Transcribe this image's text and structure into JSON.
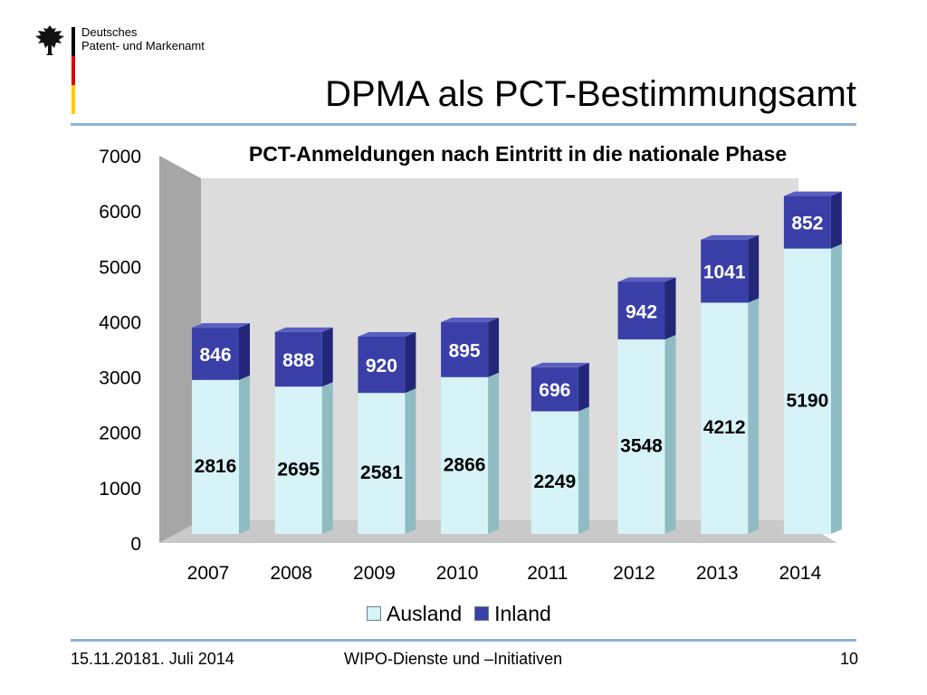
{
  "header": {
    "org_line1": "Deutsches",
    "org_line2": "Patent- und Markenamt",
    "title": "DPMA als PCT-Bestimmungsamt"
  },
  "footer": {
    "date": "15.11.20181. Juli 2014",
    "center": "WIPO-Dienste und –Initiativen",
    "page": "10"
  },
  "colors": {
    "ausland": "#d6f3f7",
    "inland": "#3a3fa8",
    "accent_rule": "#8fb3d3"
  },
  "chart_data": {
    "type": "bar",
    "stacked": true,
    "title": "PCT-Anmeldungen nach Eintritt in die nationale Phase",
    "categories": [
      "2007",
      "2008",
      "2009",
      "2010",
      "2011",
      "2012",
      "2013",
      "2014"
    ],
    "series": [
      {
        "name": "Ausland",
        "values": [
          2816,
          2695,
          2581,
          2866,
          2249,
          3548,
          4212,
          5190
        ]
      },
      {
        "name": "Inland",
        "values": [
          846,
          888,
          920,
          895,
          696,
          942,
          1041,
          852
        ]
      }
    ],
    "ylim": [
      0,
      7000
    ],
    "yticks": [
      "0",
      "1000",
      "2000",
      "3000",
      "4000",
      "5000",
      "6000",
      "7000"
    ],
    "legend_position": "bottom",
    "three_d": true
  }
}
